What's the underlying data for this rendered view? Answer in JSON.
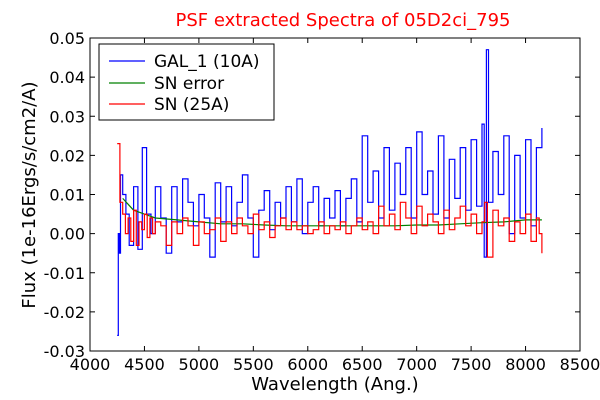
{
  "chart_data": {
    "type": "line",
    "title": "PSF extracted Spectra of 05D2ci_795",
    "title_color": "#ff0000",
    "xlabel": "Wavelength (Ang.)",
    "ylabel": "Flux (1e-16Ergs/s/cm2/A)",
    "xlim": [
      4000,
      8500
    ],
    "ylim": [
      -0.03,
      0.05
    ],
    "x_ticks": [
      4000,
      4500,
      5000,
      5500,
      6000,
      6500,
      7000,
      7500,
      8000,
      8500
    ],
    "x_tick_labels": [
      "4000",
      "4500",
      "5000",
      "5500",
      "6000",
      "6500",
      "7000",
      "7500",
      "8000",
      "8500"
    ],
    "y_ticks": [
      -0.03,
      -0.02,
      -0.01,
      0.0,
      0.01,
      0.02,
      0.03,
      0.04,
      0.05
    ],
    "y_tick_labels": [
      "-0.03",
      "-0.02",
      "-0.01",
      "0.00",
      "0.01",
      "0.02",
      "0.03",
      "0.04",
      "0.05"
    ],
    "grid": false,
    "legend_position": "top-left",
    "series": [
      {
        "name": "GAL_1 (10A)",
        "color": "#0000ff",
        "step": true,
        "x": [
          4250,
          4260,
          4270,
          4280,
          4300,
          4330,
          4360,
          4400,
          4440,
          4480,
          4520,
          4560,
          4600,
          4650,
          4700,
          4750,
          4800,
          4850,
          4900,
          4950,
          5000,
          5050,
          5100,
          5150,
          5200,
          5250,
          5300,
          5350,
          5400,
          5450,
          5500,
          5550,
          5600,
          5650,
          5700,
          5750,
          5800,
          5850,
          5900,
          5950,
          6000,
          6050,
          6100,
          6150,
          6200,
          6250,
          6300,
          6350,
          6400,
          6450,
          6500,
          6550,
          6600,
          6650,
          6700,
          6750,
          6800,
          6850,
          6900,
          6950,
          7000,
          7050,
          7100,
          7150,
          7200,
          7250,
          7300,
          7350,
          7400,
          7450,
          7500,
          7550,
          7600,
          7620,
          7640,
          7660,
          7700,
          7750,
          7800,
          7850,
          7900,
          7950,
          8000,
          8050,
          8100,
          8150
        ],
        "values": [
          -0.026,
          0.0,
          -0.005,
          0.015,
          0.01,
          0.005,
          -0.003,
          0.012,
          -0.004,
          0.022,
          0.005,
          0.0,
          0.012,
          0.004,
          -0.005,
          0.012,
          0.003,
          0.014,
          0.008,
          0.002,
          0.01,
          0.004,
          -0.006,
          0.013,
          0.003,
          0.012,
          0.002,
          0.008,
          0.015,
          0.004,
          -0.006,
          0.006,
          0.011,
          0.001,
          0.008,
          0.004,
          0.012,
          0.003,
          0.014,
          0.0,
          0.008,
          0.012,
          0.002,
          0.009,
          0.004,
          0.011,
          0.002,
          0.009,
          0.014,
          0.003,
          0.025,
          0.008,
          0.016,
          0.004,
          0.022,
          0.006,
          0.018,
          0.01,
          0.022,
          0.004,
          0.026,
          0.01,
          0.016,
          0.005,
          0.025,
          0.004,
          0.019,
          0.009,
          0.022,
          0.006,
          0.024,
          0.007,
          0.028,
          -0.006,
          0.047,
          0.008,
          0.021,
          0.01,
          0.025,
          0.0,
          0.02,
          0.004,
          0.024,
          0.002,
          0.022,
          0.027
        ]
      },
      {
        "name": "SN error",
        "color": "#008000",
        "step": false,
        "x": [
          4300,
          4400,
          4500,
          4600,
          4800,
          5000,
          5200,
          5400,
          5600,
          5800,
          6000,
          6200,
          6400,
          6600,
          6800,
          7000,
          7200,
          7400,
          7600,
          7800,
          8000,
          8150
        ],
        "values": [
          0.009,
          0.006,
          0.005,
          0.004,
          0.0035,
          0.003,
          0.0025,
          0.0025,
          0.0022,
          0.002,
          0.002,
          0.002,
          0.002,
          0.002,
          0.002,
          0.0022,
          0.0022,
          0.0025,
          0.0028,
          0.003,
          0.0035,
          0.0035
        ]
      },
      {
        "name": "SN (25A)",
        "color": "#ff0000",
        "step": true,
        "x": [
          4250,
          4275,
          4300,
          4325,
          4350,
          4375,
          4400,
          4425,
          4450,
          4475,
          4500,
          4525,
          4550,
          4575,
          4600,
          4650,
          4700,
          4750,
          4800,
          4850,
          4900,
          4950,
          5000,
          5050,
          5100,
          5150,
          5200,
          5250,
          5300,
          5350,
          5400,
          5450,
          5500,
          5550,
          5600,
          5650,
          5700,
          5750,
          5800,
          5850,
          5900,
          5950,
          6000,
          6050,
          6100,
          6150,
          6200,
          6250,
          6300,
          6350,
          6400,
          6450,
          6500,
          6550,
          6600,
          6650,
          6700,
          6750,
          6800,
          6850,
          6900,
          6950,
          7000,
          7050,
          7100,
          7150,
          7200,
          7250,
          7300,
          7350,
          7400,
          7450,
          7500,
          7550,
          7600,
          7625,
          7650,
          7700,
          7750,
          7800,
          7850,
          7900,
          7950,
          8000,
          8050,
          8100,
          8125,
          8150
        ],
        "values": [
          0.023,
          0.008,
          0.005,
          0.0,
          0.004,
          -0.002,
          0.006,
          -0.003,
          0.003,
          0.001,
          0.005,
          -0.001,
          0.004,
          0.0,
          0.003,
          0.002,
          -0.003,
          0.003,
          0.0,
          0.004,
          0.002,
          -0.003,
          0.003,
          0.0,
          0.001,
          0.004,
          -0.002,
          0.003,
          0.0,
          0.004,
          0.002,
          0.0,
          0.005,
          0.001,
          0.003,
          -0.001,
          0.002,
          0.004,
          0.001,
          0.003,
          0.001,
          0.002,
          0.0,
          0.001,
          0.003,
          0.0,
          0.002,
          0.001,
          0.003,
          0.0,
          0.002,
          0.004,
          0.001,
          0.003,
          0.0,
          0.007,
          0.002,
          0.005,
          0.001,
          0.008,
          0.004,
          0.0,
          0.007,
          0.002,
          0.005,
          0.003,
          0.0,
          0.006,
          0.001,
          0.004,
          0.007,
          0.002,
          0.005,
          0.0,
          0.003,
          0.008,
          -0.006,
          0.006,
          0.002,
          0.004,
          -0.002,
          0.003,
          0.0,
          0.005,
          -0.002,
          0.004,
          0.0,
          -0.005
        ]
      }
    ]
  }
}
